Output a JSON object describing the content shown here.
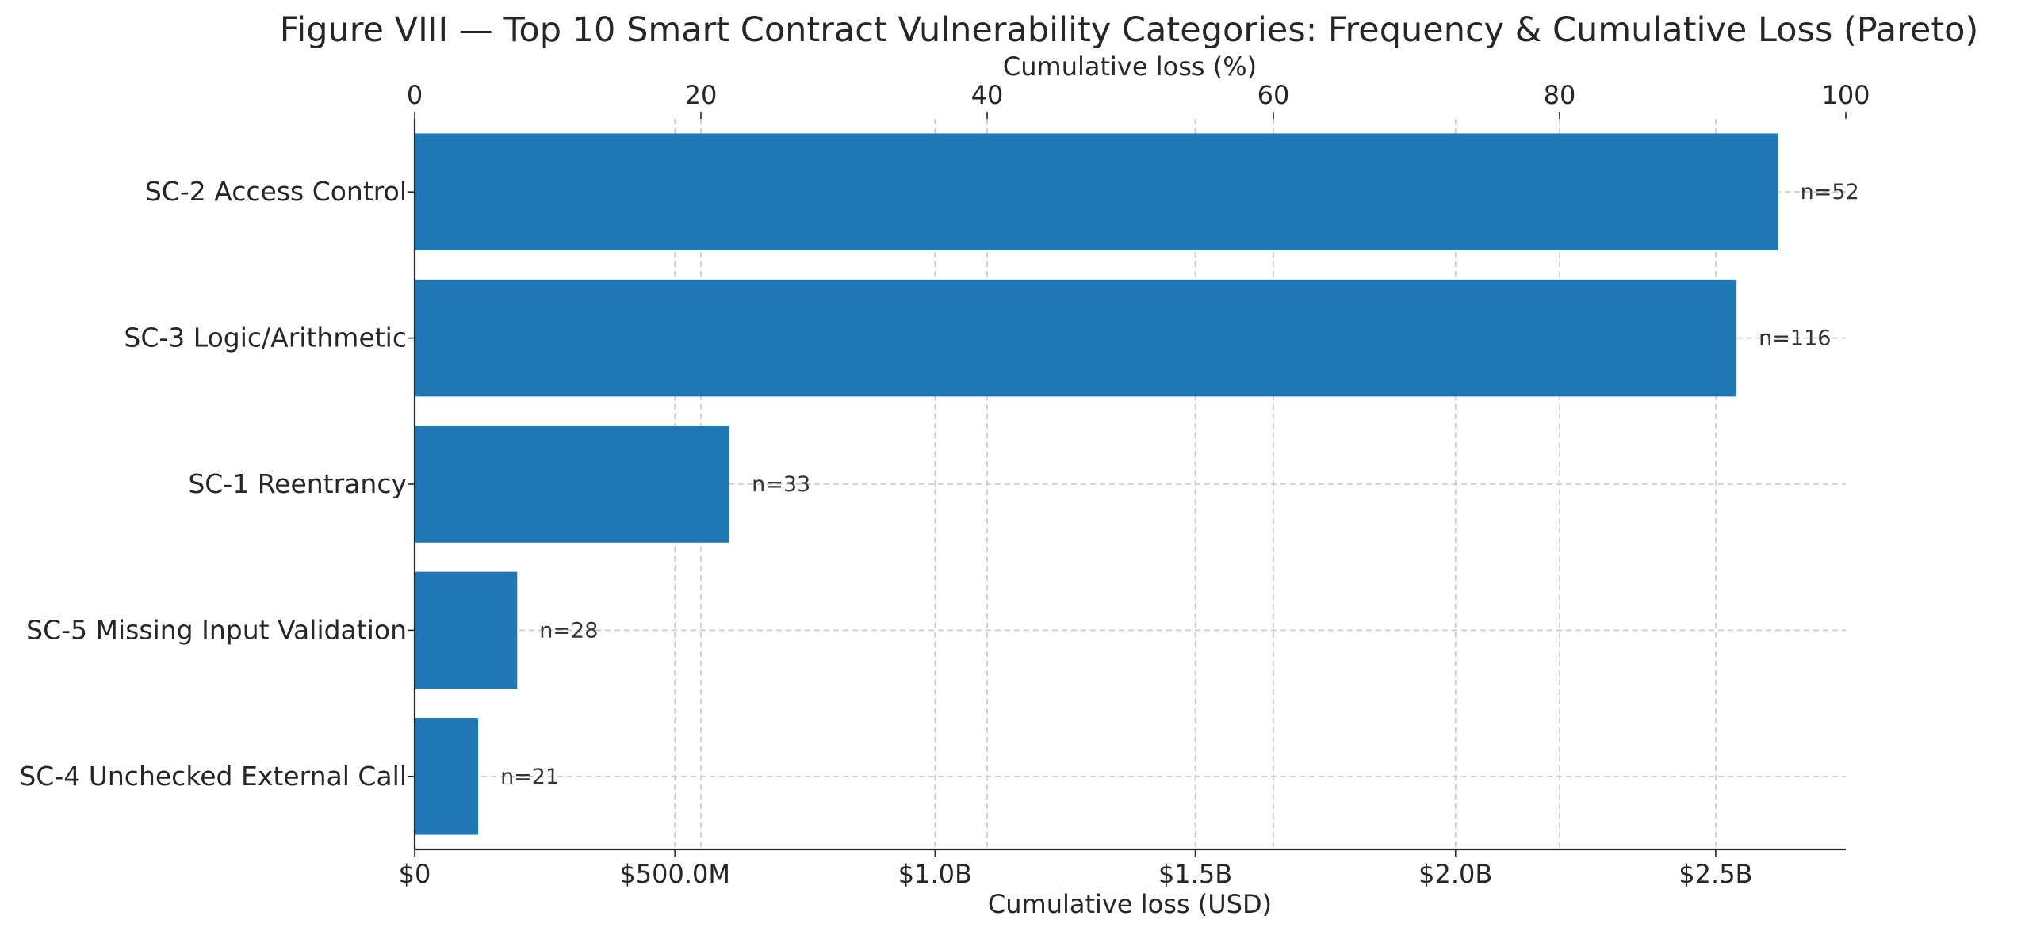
{
  "chart_data": {
    "type": "bar",
    "orientation": "horizontal",
    "title": "Figure VIII — Top 10 Smart Contract Vulnerability Categories: Frequency & Cumulative Loss (Pareto)",
    "xlabel": "Cumulative loss (USD)",
    "x2label": "Cumulative loss (%)",
    "ylabel": "",
    "categories": [
      "SC-2 Access Control",
      "SC-3 Logic/Arithmetic",
      "SC-1 Reentrancy",
      "SC-5 Missing Input Validation",
      "SC-4 Unchecked External Call"
    ],
    "values": [
      2620000000,
      2540000000,
      605000000,
      197000000,
      122000000
    ],
    "data_labels": [
      "n=52",
      "n=116",
      "n=33",
      "n=28",
      "n=21"
    ],
    "xlim": [
      0,
      2750000000
    ],
    "x_ticks": [
      {
        "value": 0,
        "label": "$0"
      },
      {
        "value": 500000000,
        "label": "$500.0M"
      },
      {
        "value": 1000000000,
        "label": "$1.0B"
      },
      {
        "value": 1500000000,
        "label": "$1.5B"
      },
      {
        "value": 2000000000,
        "label": "$2.0B"
      },
      {
        "value": 2500000000,
        "label": "$2.5B"
      }
    ],
    "x2lim": [
      0,
      100
    ],
    "x2_ticks": [
      {
        "value": 0,
        "label": "0"
      },
      {
        "value": 20,
        "label": "20"
      },
      {
        "value": 40,
        "label": "40"
      },
      {
        "value": 60,
        "label": "60"
      },
      {
        "value": 80,
        "label": "80"
      },
      {
        "value": 100,
        "label": "100"
      }
    ],
    "grid": true,
    "bar_color": "#1f77b4"
  }
}
